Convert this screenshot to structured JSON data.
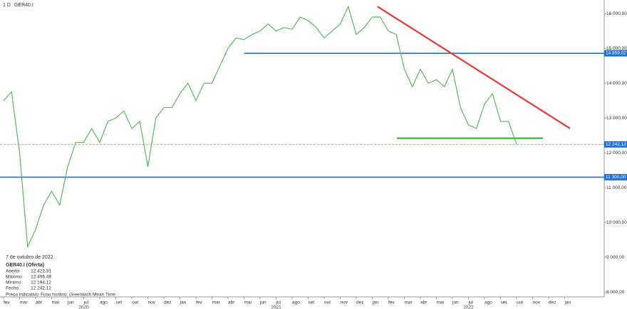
{
  "header": {
    "period": "1 D",
    "symbol": "GER40.I"
  },
  "chart_data": {
    "type": "line",
    "categories": [
      "fev",
      null,
      "mar",
      null,
      "abr",
      null,
      "mai",
      null,
      "jun",
      null,
      "jul",
      null,
      "ago",
      null,
      "set",
      null,
      "out",
      null,
      "nov",
      null,
      "dez",
      null,
      "jan",
      null,
      "fev",
      null,
      "mar",
      null,
      "abr",
      null,
      "mai",
      null,
      "jun",
      null,
      "jul",
      null,
      "ago",
      null,
      "set",
      null,
      "out",
      null,
      "nov",
      null,
      "dez",
      null,
      "jan",
      null,
      "fev",
      null,
      "mar",
      null,
      "abr",
      null,
      "mai",
      null,
      "jun",
      null,
      "jul",
      null,
      "ago",
      null,
      "set",
      null,
      "out",
      null,
      "nov",
      null,
      "dez",
      null,
      "jan",
      null
    ],
    "year_labels": [
      "2020",
      "2021",
      "2022"
    ],
    "series": [
      {
        "name": "GER40.I",
        "color": "#5cb85c",
        "values": [
          13500,
          13750,
          12000,
          9300,
          9800,
          10500,
          10900,
          10500,
          11600,
          12300,
          12300,
          12700,
          12300,
          12900,
          13000,
          13200,
          12700,
          12900,
          11600,
          13000,
          13300,
          13300,
          13700,
          14000,
          13500,
          14000,
          14000,
          14500,
          15000,
          15300,
          15250,
          15400,
          15500,
          15700,
          15500,
          15600,
          15550,
          15900,
          15800,
          15600,
          15300,
          15500,
          15700,
          16200,
          15400,
          15600,
          15900,
          15900,
          15500,
          15400,
          14400,
          13900,
          14400,
          14000,
          14100,
          13900,
          14400,
          13300,
          12800,
          12700,
          13400,
          13700,
          12900,
          12900,
          12242.12,
          null,
          null,
          null,
          null,
          null,
          null,
          null
        ]
      }
    ],
    "ylim": [
      7860,
      16390
    ],
    "yticks": [
      {
        "value": 8000,
        "label": "8 000,00"
      },
      {
        "value": 9000,
        "label": "9 000,00"
      },
      {
        "value": 10000,
        "label": "10 000,00"
      },
      {
        "value": 11000,
        "label": "11 000,00"
      },
      {
        "value": 12000,
        "label": "12 000,00"
      },
      {
        "value": 13000,
        "label": "13 000,00"
      },
      {
        "value": 14000,
        "label": "14 000,00"
      },
      {
        "value": 15000,
        "label": "15 000,00"
      },
      {
        "value": 16000,
        "label": "16 000,00"
      }
    ],
    "levels": [
      {
        "value": 14859.02,
        "label": "14 859,02",
        "color": "#1e6fd9"
      },
      {
        "value": 12242.12,
        "label": "12 242,12",
        "color": "#1e6fd9"
      },
      {
        "value": 11300,
        "label": "11 300,00",
        "color": "#1e6fd9"
      }
    ],
    "trendlines": [
      {
        "color": "#e53935",
        "values": [
          16200,
          12700
        ]
      },
      {
        "color": "#2eb82e",
        "values": [
          12420,
          12420
        ]
      }
    ]
  },
  "info": {
    "date": "7 de outubro de 2022",
    "instrument": "GER40.I (Oferta)",
    "rows": [
      [
        "Aberto",
        "12 422,31"
      ],
      [
        "Máximo",
        "12 496,49"
      ],
      [
        "Mínimo",
        "12 194,12"
      ],
      [
        "Fecho",
        "12 242,12"
      ]
    ],
    "footer": [
      "Preço indicativo",
      "Fuso horário: Greenwich Mean Time"
    ]
  }
}
